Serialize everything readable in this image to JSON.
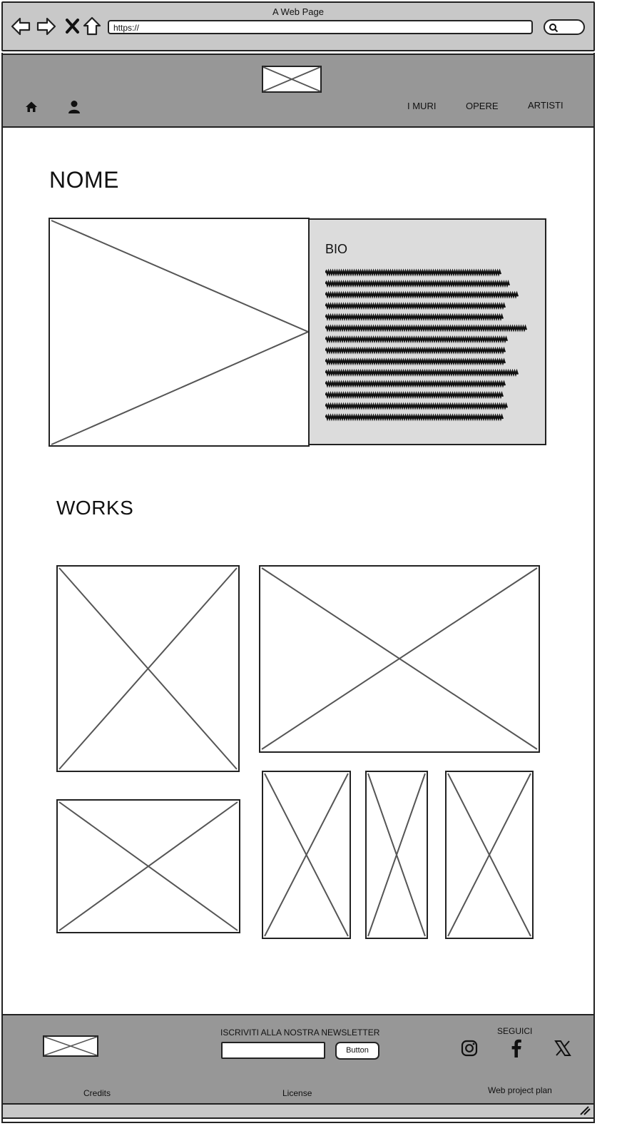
{
  "browser": {
    "title": "A Web Page",
    "url": "https://"
  },
  "header": {
    "menu": [
      {
        "label": "I MURI"
      },
      {
        "label": "OPERE"
      },
      {
        "label": "ARTISTI"
      }
    ]
  },
  "main": {
    "title": "NOME",
    "bio": {
      "heading": "BIO"
    },
    "works_title": "WORKS"
  },
  "footer": {
    "newsletter_label": "ISCRIVITI ALLA NOSTRA NEWSLETTER",
    "newsletter_button": "Button",
    "follow_label": "SEGUICI",
    "links": {
      "credits": "Credits",
      "license": "License",
      "plan": "Web project plan"
    }
  },
  "icons": {
    "back": "back-arrow-icon",
    "forward": "forward-arrow-icon",
    "stop": "close-icon",
    "home": "home-icon",
    "user": "user-icon",
    "search": "search-icon",
    "instagram": "instagram-icon",
    "facebook": "facebook-icon",
    "x": "x-twitter-icon"
  }
}
